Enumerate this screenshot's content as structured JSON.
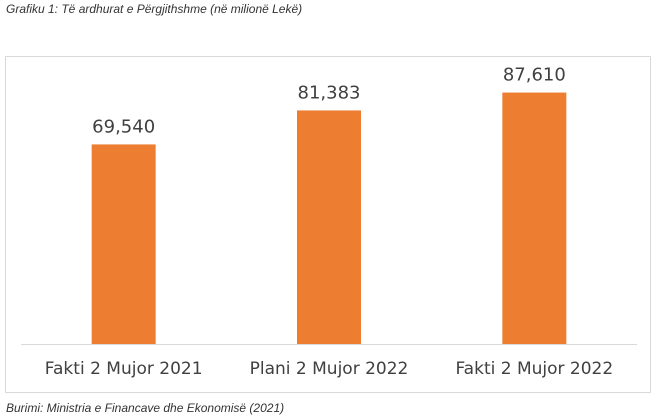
{
  "caption": "Grafiku 1: Të ardhurat e Përgjithshme (në milionë Lekë)",
  "source": "Burimi: Ministria e Financave dhe Ekonomisë (2021)",
  "colors": {
    "bar": "#ed7d31",
    "axis": "#d9d9d9"
  },
  "chart_data": {
    "type": "bar",
    "title": "",
    "xlabel": "",
    "ylabel": "",
    "categories": [
      "Fakti 2 Mujor 2021",
      "Plani 2 Mujor 2022",
      "Fakti 2 Mujor 2022"
    ],
    "values": [
      69540,
      81383,
      87610
    ],
    "value_labels": [
      "69,540",
      "81,383",
      "87,610"
    ],
    "ylim": [
      0,
      100000
    ],
    "grid": false,
    "legend": "none"
  }
}
